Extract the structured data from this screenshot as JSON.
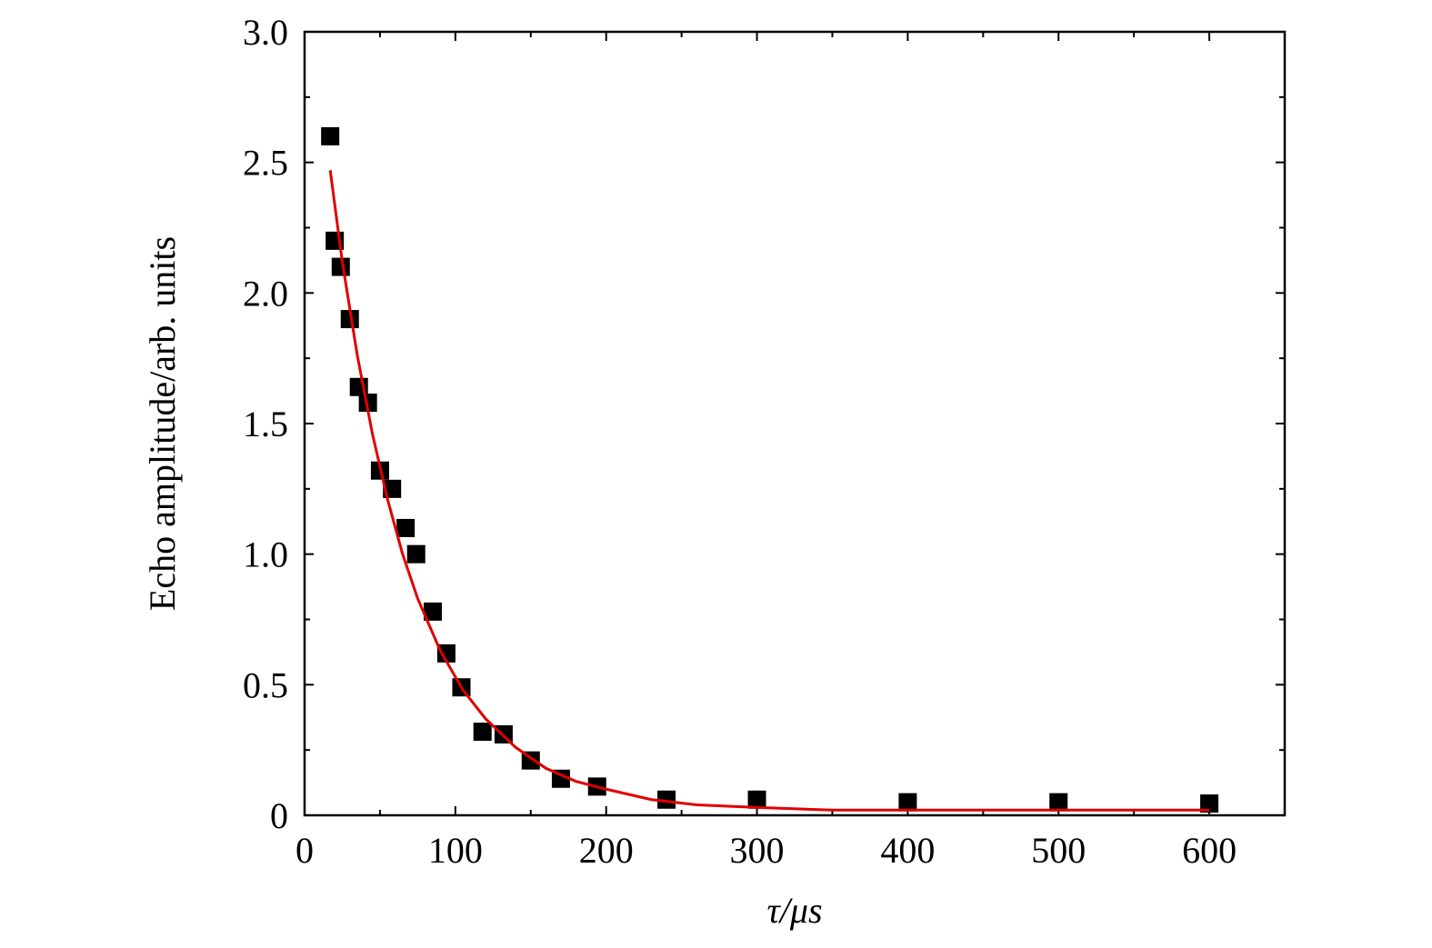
{
  "chart_data": {
    "type": "scatter",
    "xlabel": "τ/μs",
    "ylabel": "Echo amplitude/arb. units",
    "xlim": [
      0,
      650
    ],
    "xticks": [
      0,
      100,
      200,
      300,
      400,
      500,
      600
    ],
    "ylim": [
      0,
      3
    ],
    "yticks": [
      0,
      0.5,
      {
        "value": 1,
        "label": "1.0"
      },
      1.5,
      {
        "value": 2,
        "label": "2.0"
      },
      2.5,
      {
        "value": 3,
        "label": "3.0"
      }
    ],
    "grid": false,
    "series": [
      {
        "type": "scatter",
        "color": "#000000",
        "x": [
          17,
          20,
          24,
          30,
          36,
          42,
          50,
          58,
          67,
          74,
          85,
          94,
          104,
          118,
          132,
          150,
          170,
          194,
          240,
          300,
          400,
          500,
          600
        ],
        "values": [
          2.6,
          2.2,
          2.1,
          1.9,
          1.64,
          1.58,
          1.32,
          1.25,
          1.1,
          1.0,
          0.78,
          0.62,
          0.49,
          0.32,
          0.31,
          0.21,
          0.14,
          0.11,
          0.06,
          0.06,
          0.05,
          0.05,
          0.045
        ]
      },
      {
        "type": "line",
        "color": "#e00000",
        "x": [
          17,
          25,
          35,
          45,
          55,
          65,
          75,
          90,
          105,
          120,
          140,
          160,
          180,
          200,
          230,
          260,
          300,
          350,
          400,
          500,
          600
        ],
        "values": [
          2.47,
          2.12,
          1.76,
          1.46,
          1.21,
          1.0,
          0.83,
          0.63,
          0.48,
          0.37,
          0.26,
          0.18,
          0.13,
          0.1,
          0.06,
          0.04,
          0.03,
          0.02,
          0.02,
          0.02,
          0.02
        ]
      }
    ]
  }
}
